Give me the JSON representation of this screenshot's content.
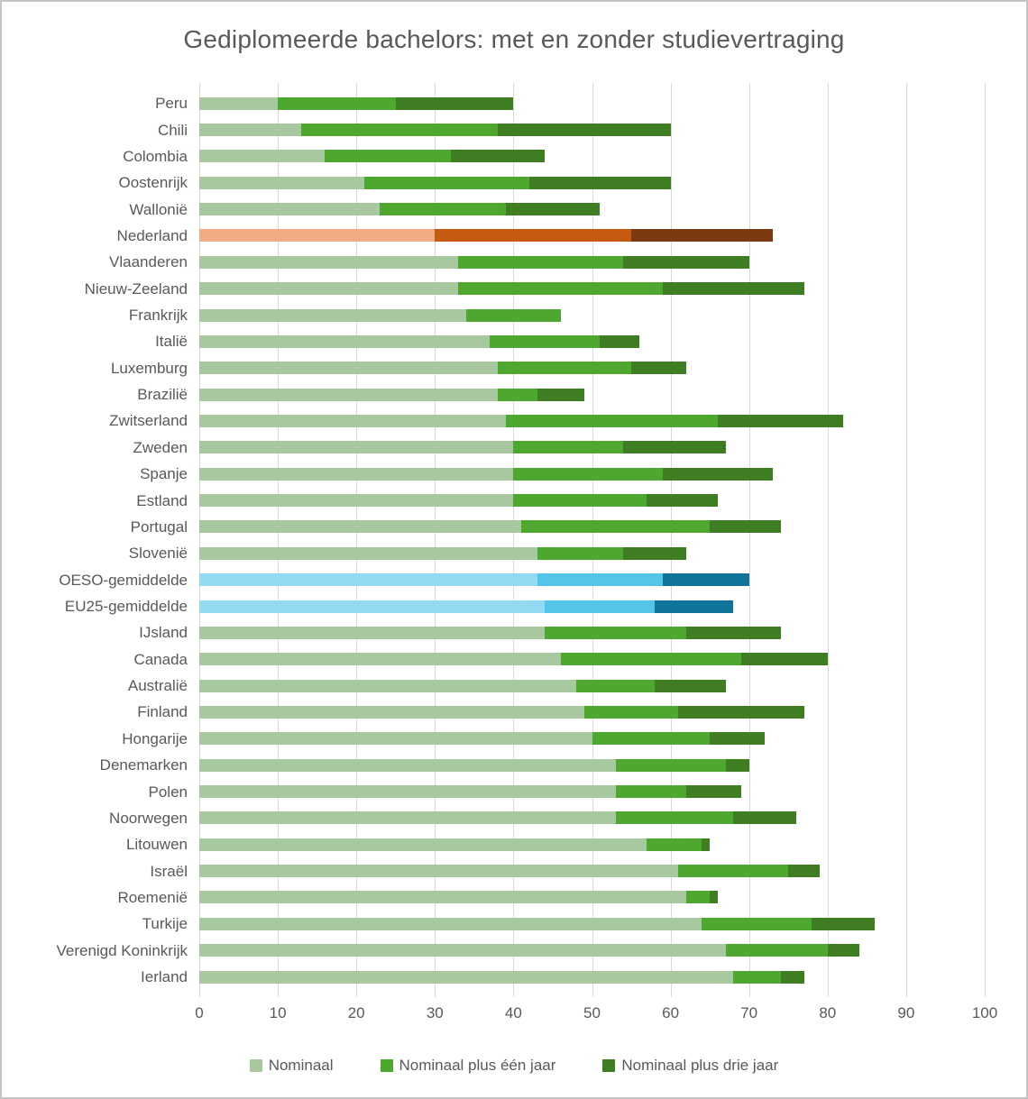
{
  "title": "Gediplomeerde bachelors: met en zonder studievertraging",
  "colors": {
    "schemes": {
      "green": [
        "#a8c9a0",
        "#4ea72e",
        "#3f7d23"
      ],
      "orange": [
        "#f2ab84",
        "#c55a11",
        "#7d3a12"
      ],
      "blue": [
        "#92d9f2",
        "#54c5e9",
        "#0f7499"
      ]
    },
    "gridline": "#d9d9d9",
    "text": "#595959"
  },
  "x_axis": {
    "min": 0,
    "max": 100,
    "tick_step": 10,
    "ticks": [
      0,
      10,
      20,
      30,
      40,
      50,
      60,
      70,
      80,
      90,
      100
    ]
  },
  "legend": {
    "items": [
      {
        "label": "Nominaal",
        "scheme": "green",
        "scheme_index": 0
      },
      {
        "label": "Nominaal plus één jaar",
        "scheme": "green",
        "scheme_index": 1
      },
      {
        "label": "Nominaal plus drie jaar",
        "scheme": "green",
        "scheme_index": 2
      }
    ]
  },
  "chart_data": {
    "type": "bar",
    "orientation": "horizontal",
    "stacked": true,
    "title": "Gediplomeerde bachelors: met en zonder studievertraging",
    "xlabel": "",
    "ylabel": "",
    "xlim": [
      0,
      100
    ],
    "grid": true,
    "legend_position": "bottom",
    "series_names": [
      "Nominaal",
      "Nominaal plus één jaar",
      "Nominaal plus drie jaar"
    ],
    "values_note": "cumulative graduation percentages read off the x-axis; segment widths are the differences",
    "rows": [
      {
        "name": "Peru",
        "scheme": "green",
        "nominaal": 10,
        "plus_een_jaar": 25,
        "plus_drie_jaar": 40
      },
      {
        "name": "Chili",
        "scheme": "green",
        "nominaal": 13,
        "plus_een_jaar": 38,
        "plus_drie_jaar": 60
      },
      {
        "name": "Colombia",
        "scheme": "green",
        "nominaal": 16,
        "plus_een_jaar": 32,
        "plus_drie_jaar": 44
      },
      {
        "name": "Oostenrijk",
        "scheme": "green",
        "nominaal": 21,
        "plus_een_jaar": 42,
        "plus_drie_jaar": 60
      },
      {
        "name": "Wallonië",
        "scheme": "green",
        "nominaal": 23,
        "plus_een_jaar": 39,
        "plus_drie_jaar": 51
      },
      {
        "name": "Nederland",
        "scheme": "orange",
        "nominaal": 30,
        "plus_een_jaar": 55,
        "plus_drie_jaar": 73
      },
      {
        "name": "Vlaanderen",
        "scheme": "green",
        "nominaal": 33,
        "plus_een_jaar": 54,
        "plus_drie_jaar": 70
      },
      {
        "name": "Nieuw-Zeeland",
        "scheme": "green",
        "nominaal": 33,
        "plus_een_jaar": 59,
        "plus_drie_jaar": 77
      },
      {
        "name": "Frankrijk",
        "scheme": "green",
        "nominaal": 34,
        "plus_een_jaar": 46,
        "plus_drie_jaar": 46
      },
      {
        "name": "Italië",
        "scheme": "green",
        "nominaal": 37,
        "plus_een_jaar": 51,
        "plus_drie_jaar": 56
      },
      {
        "name": "Luxemburg",
        "scheme": "green",
        "nominaal": 38,
        "plus_een_jaar": 55,
        "plus_drie_jaar": 62
      },
      {
        "name": "Brazilië",
        "scheme": "green",
        "nominaal": 38,
        "plus_een_jaar": 43,
        "plus_drie_jaar": 49
      },
      {
        "name": "Zwitserland",
        "scheme": "green",
        "nominaal": 39,
        "plus_een_jaar": 66,
        "plus_drie_jaar": 82
      },
      {
        "name": "Zweden",
        "scheme": "green",
        "nominaal": 40,
        "plus_een_jaar": 54,
        "plus_drie_jaar": 67
      },
      {
        "name": "Spanje",
        "scheme": "green",
        "nominaal": 40,
        "plus_een_jaar": 59,
        "plus_drie_jaar": 73
      },
      {
        "name": "Estland",
        "scheme": "green",
        "nominaal": 40,
        "plus_een_jaar": 57,
        "plus_drie_jaar": 66
      },
      {
        "name": "Portugal",
        "scheme": "green",
        "nominaal": 41,
        "plus_een_jaar": 65,
        "plus_drie_jaar": 74
      },
      {
        "name": "Slovenië",
        "scheme": "green",
        "nominaal": 43,
        "plus_een_jaar": 54,
        "plus_drie_jaar": 62
      },
      {
        "name": "OESO-gemiddelde",
        "scheme": "blue",
        "nominaal": 43,
        "plus_een_jaar": 59,
        "plus_drie_jaar": 70
      },
      {
        "name": "EU25-gemiddelde",
        "scheme": "blue",
        "nominaal": 44,
        "plus_een_jaar": 58,
        "plus_drie_jaar": 68
      },
      {
        "name": "IJsland",
        "scheme": "green",
        "nominaal": 44,
        "plus_een_jaar": 62,
        "plus_drie_jaar": 74
      },
      {
        "name": "Canada",
        "scheme": "green",
        "nominaal": 46,
        "plus_een_jaar": 69,
        "plus_drie_jaar": 80
      },
      {
        "name": "Australië",
        "scheme": "green",
        "nominaal": 48,
        "plus_een_jaar": 58,
        "plus_drie_jaar": 67
      },
      {
        "name": "Finland",
        "scheme": "green",
        "nominaal": 49,
        "plus_een_jaar": 61,
        "plus_drie_jaar": 77
      },
      {
        "name": "Hongarije",
        "scheme": "green",
        "nominaal": 50,
        "plus_een_jaar": 65,
        "plus_drie_jaar": 72
      },
      {
        "name": "Denemarken",
        "scheme": "green",
        "nominaal": 53,
        "plus_een_jaar": 67,
        "plus_drie_jaar": 70
      },
      {
        "name": "Polen",
        "scheme": "green",
        "nominaal": 53,
        "plus_een_jaar": 62,
        "plus_drie_jaar": 69
      },
      {
        "name": "Noorwegen",
        "scheme": "green",
        "nominaal": 53,
        "plus_een_jaar": 68,
        "plus_drie_jaar": 76
      },
      {
        "name": "Litouwen",
        "scheme": "green",
        "nominaal": 57,
        "plus_een_jaar": 64,
        "plus_drie_jaar": 65
      },
      {
        "name": "Israël",
        "scheme": "green",
        "nominaal": 61,
        "plus_een_jaar": 75,
        "plus_drie_jaar": 79
      },
      {
        "name": "Roemenië",
        "scheme": "green",
        "nominaal": 62,
        "plus_een_jaar": 65,
        "plus_drie_jaar": 66
      },
      {
        "name": "Turkije",
        "scheme": "green",
        "nominaal": 64,
        "plus_een_jaar": 78,
        "plus_drie_jaar": 86
      },
      {
        "name": "Verenigd Koninkrijk",
        "scheme": "green",
        "nominaal": 67,
        "plus_een_jaar": 80,
        "plus_drie_jaar": 84
      },
      {
        "name": "Ierland",
        "scheme": "green",
        "nominaal": 68,
        "plus_een_jaar": 74,
        "plus_drie_jaar": 77
      }
    ]
  }
}
